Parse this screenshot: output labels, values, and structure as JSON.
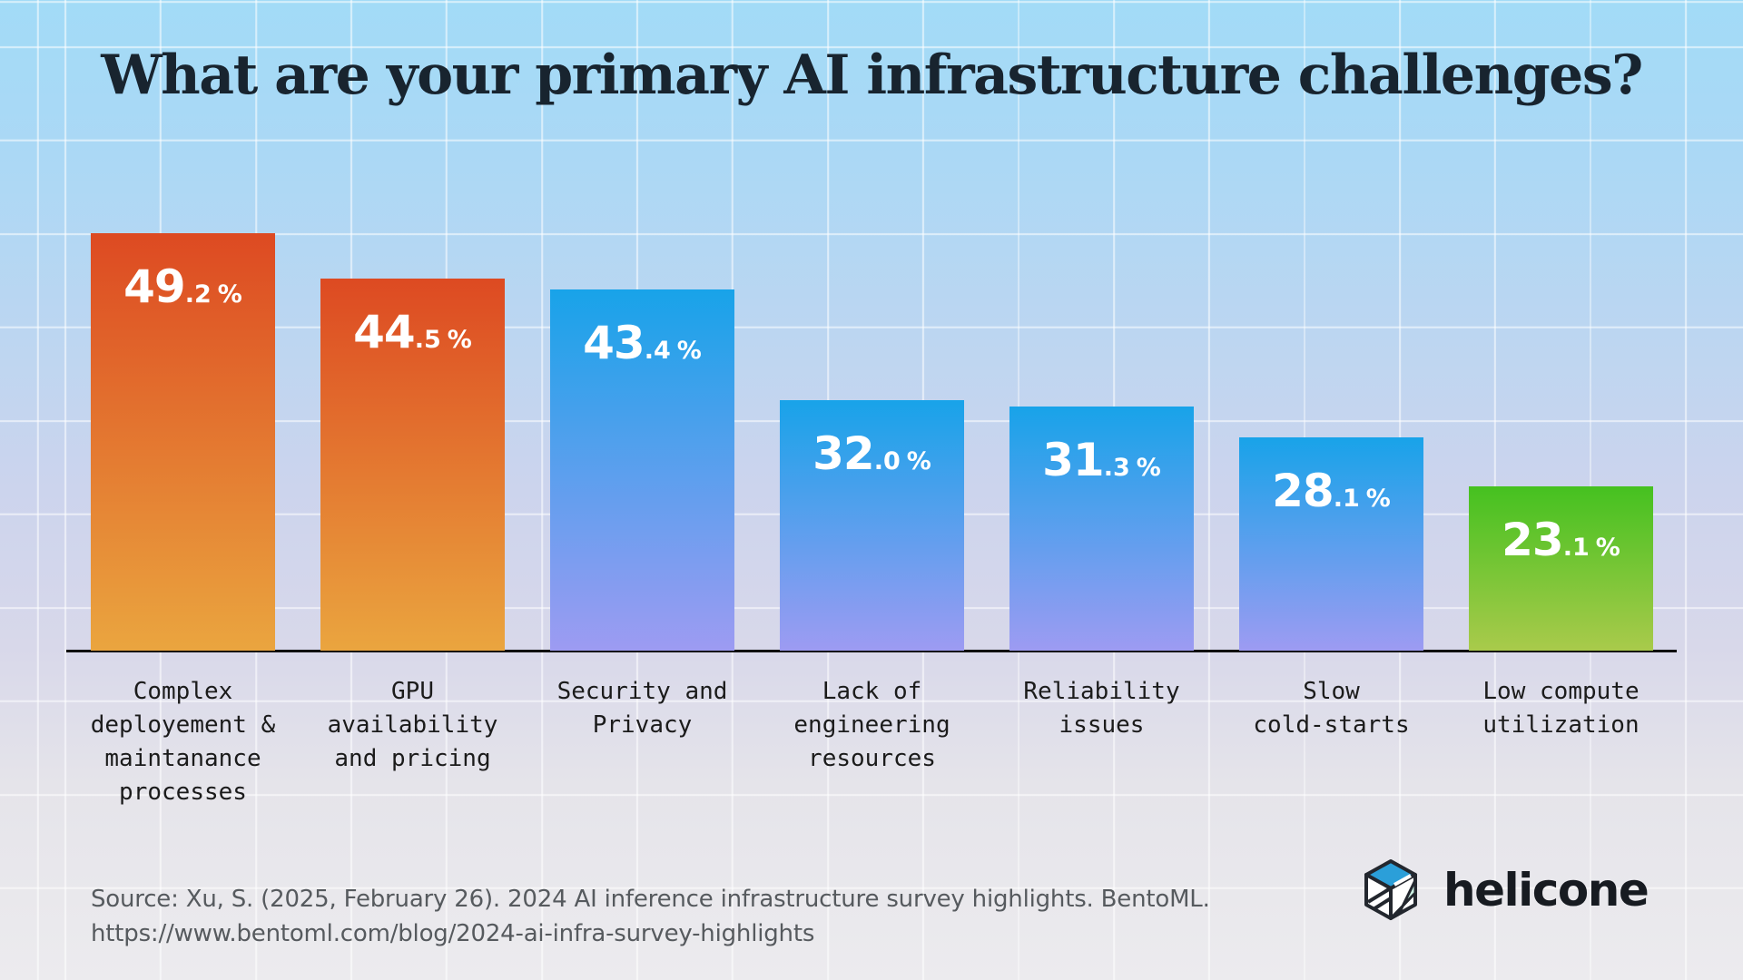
{
  "title": "What are your primary AI infrastructure challenges?",
  "chart_data": {
    "type": "bar",
    "title": "What are your primary AI infrastructure challenges?",
    "unit": "%",
    "categories": [
      "Complex deployement & maintanance processes",
      "GPU availability and pricing",
      "Security and Privacy",
      "Lack of engineering resources",
      "Reliability issues",
      "Slow cold-starts",
      "Low compute utilization"
    ],
    "category_lines": [
      [
        "Complex",
        "deployement &",
        "maintanance",
        "processes"
      ],
      [
        "GPU",
        "availability",
        "and pricing"
      ],
      [
        "Security and",
        "Privacy"
      ],
      [
        "Lack of",
        "engineering",
        "resources"
      ],
      [
        "Reliability",
        "issues"
      ],
      [
        "Slow",
        "cold-starts"
      ],
      [
        "Low compute",
        "utilization"
      ]
    ],
    "values": [
      49.2,
      44.5,
      43.4,
      32.0,
      31.3,
      28.1,
      23.1
    ],
    "ylim": [
      0,
      50
    ],
    "grid": true,
    "legend": false,
    "value_labels_position": "inside-top",
    "bar_palettes": [
      {
        "top": "#dd4a22",
        "bottom": "#eaa53f"
      },
      {
        "top": "#dd4a22",
        "bottom": "#eaa53f"
      },
      {
        "top": "#18a3e9",
        "bottom": "#9d9bf2"
      },
      {
        "top": "#18a3e9",
        "bottom": "#9d9bf2"
      },
      {
        "top": "#18a3e9",
        "bottom": "#9d9bf2"
      },
      {
        "top": "#18a3e9",
        "bottom": "#9d9bf2"
      },
      {
        "top": "#45c120",
        "bottom": "#a9ca4b"
      }
    ]
  },
  "footer": {
    "source_line1": "Source: Xu, S. (2025, February 26). 2024 AI inference infrastructure survey highlights. BentoML.",
    "source_line2": "https://www.bentoml.com/blog/2024-ai-infra-survey-highlights",
    "logo_text": "helicone"
  },
  "colors": {
    "title_text": "#18242f",
    "value_text": "#ffffff",
    "category_text": "#1b1b1b",
    "source_text": "#565a5e",
    "axis": "#101010",
    "background_top": "#a2dbf7",
    "background_bottom": "#ecebee",
    "grid_line": "#ffffff",
    "logo_blue": "#2b9fd9",
    "logo_mint": "#cdf2e4",
    "logo_outline": "#23272e",
    "logo_text_color": "#171b21"
  }
}
